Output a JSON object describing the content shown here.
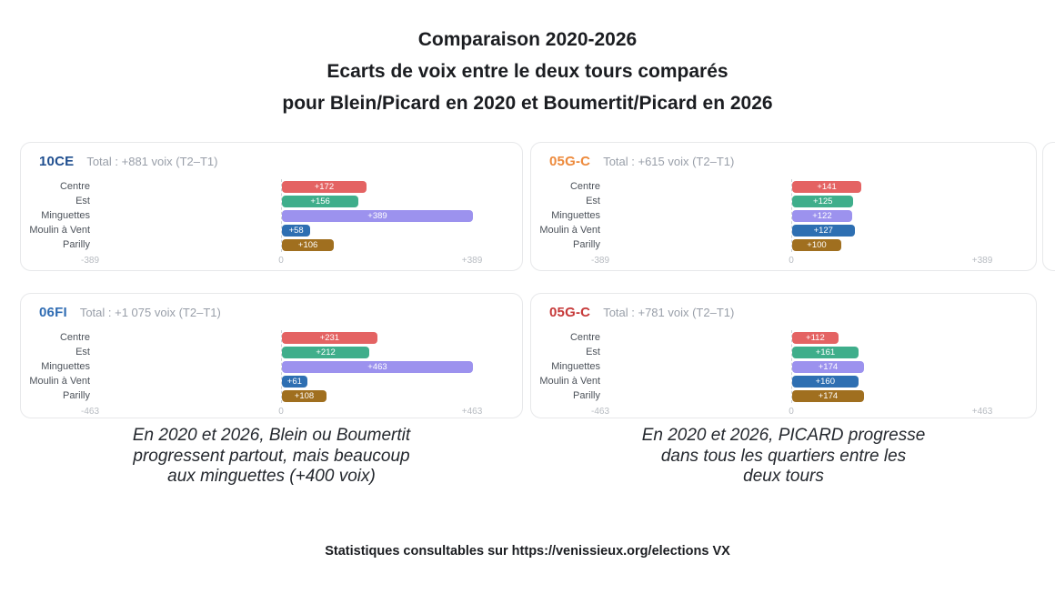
{
  "title": {
    "line1": "Comparaison 2020-2026",
    "line2": "Ecarts de voix entre le deux tours comparés",
    "line3": "pour Blein/Picard en 2020 et Boumertit/Picard en 2026"
  },
  "chart_data": [
    {
      "type": "bar",
      "orientation": "horizontal",
      "code": "10CE",
      "code_color": "#1f4e8f",
      "total_label": "Total : +881 voix (T2–T1)",
      "categories": [
        "Centre",
        "Est",
        "Minguettes",
        "Moulin à Vent",
        "Parilly"
      ],
      "values": [
        172,
        156,
        389,
        58,
        106
      ],
      "value_labels": [
        "+172",
        "+156",
        "+389",
        "+58",
        "+106"
      ],
      "xlim": [
        -389,
        389
      ],
      "tick_labels": [
        "-389",
        "0",
        "+389"
      ],
      "bar_colors": [
        "#e46363",
        "#3fae8b",
        "#9c92ee",
        "#2e6fb2",
        "#a06f1f"
      ]
    },
    {
      "type": "bar",
      "orientation": "horizontal",
      "code": "05G-C",
      "code_color": "#ed8a3c",
      "total_label": "Total : +615 voix (T2–T1)",
      "categories": [
        "Centre",
        "Est",
        "Minguettes",
        "Moulin à Vent",
        "Parilly"
      ],
      "values": [
        141,
        125,
        122,
        127,
        100
      ],
      "value_labels": [
        "+141",
        "+125",
        "+122",
        "+127",
        "+100"
      ],
      "xlim": [
        -389,
        389
      ],
      "tick_labels": [
        "-389",
        "0",
        "+389"
      ],
      "bar_colors": [
        "#e46363",
        "#3fae8b",
        "#9c92ee",
        "#2e6fb2",
        "#a06f1f"
      ]
    },
    {
      "type": "bar",
      "orientation": "horizontal",
      "code": "06FI",
      "code_color": "#2f6cb3",
      "total_label": "Total : +1 075 voix (T2–T1)",
      "categories": [
        "Centre",
        "Est",
        "Minguettes",
        "Moulin à Vent",
        "Parilly"
      ],
      "values": [
        231,
        212,
        463,
        61,
        108
      ],
      "value_labels": [
        "+231",
        "+212",
        "+463",
        "+61",
        "+108"
      ],
      "xlim": [
        -463,
        463
      ],
      "tick_labels": [
        "-463",
        "0",
        "+463"
      ],
      "bar_colors": [
        "#e46363",
        "#3fae8b",
        "#9c92ee",
        "#2e6fb2",
        "#a06f1f"
      ]
    },
    {
      "type": "bar",
      "orientation": "horizontal",
      "code": "05G-C",
      "code_color": "#c63939",
      "total_label": "Total : +781 voix (T2–T1)",
      "categories": [
        "Centre",
        "Est",
        "Minguettes",
        "Moulin à Vent",
        "Parilly"
      ],
      "values": [
        112,
        161,
        174,
        160,
        174
      ],
      "value_labels": [
        "+112",
        "+161",
        "+174",
        "+160",
        "+174"
      ],
      "xlim": [
        -463,
        463
      ],
      "tick_labels": [
        "-463",
        "0",
        "+463"
      ],
      "bar_colors": [
        "#e46363",
        "#3fae8b",
        "#9c92ee",
        "#2e6fb2",
        "#a06f1f"
      ]
    }
  ],
  "captions": {
    "left": [
      "En 2020 et 2026, Blein ou Boumertit",
      "progressent partout, mais beaucoup",
      "aux minguettes (+400 voix)"
    ],
    "right": [
      "En 2020 et 2026, PICARD progresse",
      "dans tous les quartiers entre les",
      "deux tours"
    ]
  },
  "footer": "Statistiques consultables sur https://venissieux.org/elections VX"
}
